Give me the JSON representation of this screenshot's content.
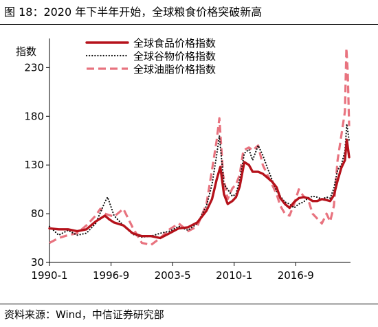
{
  "figure_title": "图 18：2020 年下半年开始，全球粮食价格突破新高",
  "source": "资料来源：Wind，中信证券研究部",
  "chart_data": {
    "type": "line",
    "title": "",
    "ylabel": "指数",
    "xlabel": "",
    "ylim": [
      30,
      250
    ],
    "yticks": [
      30,
      80,
      130,
      180,
      230
    ],
    "xlim": [
      1990.0,
      2022.6
    ],
    "xticks": [
      {
        "label": "1990-1",
        "t": 1990.0
      },
      {
        "label": "1996-9",
        "t": 1996.667
      },
      {
        "label": "2003-5",
        "t": 2003.333
      },
      {
        "label": "2010-1",
        "t": 2010.0
      },
      {
        "label": "2016-9",
        "t": 2016.667
      }
    ],
    "legend_position": "top",
    "grid": false,
    "series": [
      {
        "name": "全球食品价格指数",
        "color": "#b5121b",
        "style": "solid-thick",
        "points": [
          [
            1990.0,
            65
          ],
          [
            1991.0,
            64
          ],
          [
            1992.0,
            64
          ],
          [
            1993.0,
            62
          ],
          [
            1994.0,
            64
          ],
          [
            1995.0,
            72
          ],
          [
            1996.0,
            78
          ],
          [
            1996.5,
            74
          ],
          [
            1997.0,
            71
          ],
          [
            1998.0,
            68
          ],
          [
            1999.0,
            60
          ],
          [
            2000.0,
            57
          ],
          [
            2001.0,
            57
          ],
          [
            2002.0,
            55
          ],
          [
            2003.0,
            60
          ],
          [
            2004.0,
            65
          ],
          [
            2005.0,
            66
          ],
          [
            2006.0,
            71
          ],
          [
            2007.0,
            83
          ],
          [
            2007.6,
            95
          ],
          [
            2008.1,
            115
          ],
          [
            2008.5,
            128
          ],
          [
            2008.9,
            100
          ],
          [
            2009.3,
            90
          ],
          [
            2009.8,
            93
          ],
          [
            2010.2,
            97
          ],
          [
            2010.6,
            108
          ],
          [
            2011.1,
            133
          ],
          [
            2011.6,
            130
          ],
          [
            2012.0,
            123
          ],
          [
            2012.6,
            123
          ],
          [
            2013.1,
            121
          ],
          [
            2013.6,
            117
          ],
          [
            2014.1,
            113
          ],
          [
            2014.6,
            107
          ],
          [
            2015.0,
            96
          ],
          [
            2015.5,
            90
          ],
          [
            2016.0,
            86
          ],
          [
            2016.5,
            92
          ],
          [
            2017.0,
            96
          ],
          [
            2017.5,
            97
          ],
          [
            2018.0,
            96
          ],
          [
            2018.5,
            93
          ],
          [
            2019.0,
            93
          ],
          [
            2019.5,
            95
          ],
          [
            2020.0,
            94
          ],
          [
            2020.4,
            93
          ],
          [
            2020.8,
            99
          ],
          [
            2021.2,
            114
          ],
          [
            2021.6,
            127
          ],
          [
            2022.0,
            135
          ],
          [
            2022.2,
            156
          ],
          [
            2022.45,
            138
          ]
        ]
      },
      {
        "name": "全球谷物价格指数",
        "color": "#111111",
        "style": "dotted",
        "points": [
          [
            1990.0,
            67
          ],
          [
            1991.0,
            58
          ],
          [
            1992.0,
            63
          ],
          [
            1993.0,
            58
          ],
          [
            1994.0,
            60
          ],
          [
            1995.0,
            70
          ],
          [
            1996.0,
            92
          ],
          [
            1996.3,
            97
          ],
          [
            1997.0,
            78
          ],
          [
            1998.0,
            68
          ],
          [
            1999.0,
            59
          ],
          [
            2000.0,
            56
          ],
          [
            2001.0,
            57
          ],
          [
            2002.0,
            60
          ],
          [
            2003.0,
            62
          ],
          [
            2004.0,
            67
          ],
          [
            2005.0,
            63
          ],
          [
            2006.0,
            70
          ],
          [
            2007.0,
            88
          ],
          [
            2007.6,
            110
          ],
          [
            2008.1,
            140
          ],
          [
            2008.4,
            160
          ],
          [
            2008.9,
            110
          ],
          [
            2009.3,
            105
          ],
          [
            2009.8,
            98
          ],
          [
            2010.2,
            100
          ],
          [
            2010.6,
            115
          ],
          [
            2011.1,
            142
          ],
          [
            2011.6,
            146
          ],
          [
            2012.0,
            135
          ],
          [
            2012.6,
            150
          ],
          [
            2013.1,
            140
          ],
          [
            2013.6,
            127
          ],
          [
            2014.1,
            115
          ],
          [
            2014.6,
            103
          ],
          [
            2015.0,
            98
          ],
          [
            2015.5,
            92
          ],
          [
            2016.0,
            90
          ],
          [
            2016.5,
            86
          ],
          [
            2017.0,
            90
          ],
          [
            2017.5,
            92
          ],
          [
            2018.0,
            96
          ],
          [
            2018.5,
            98
          ],
          [
            2019.0,
            97
          ],
          [
            2019.5,
            95
          ],
          [
            2020.0,
            97
          ],
          [
            2020.4,
            96
          ],
          [
            2020.8,
            106
          ],
          [
            2021.2,
            125
          ],
          [
            2021.6,
            130
          ],
          [
            2022.0,
            144
          ],
          [
            2022.2,
            172
          ],
          [
            2022.45,
            155
          ]
        ]
      },
      {
        "name": "全球油脂价格指数",
        "color": "#e8737f",
        "style": "dashed",
        "points": [
          [
            1990.0,
            50
          ],
          [
            1991.0,
            55
          ],
          [
            1992.0,
            58
          ],
          [
            1993.0,
            60
          ],
          [
            1994.0,
            68
          ],
          [
            1995.0,
            78
          ],
          [
            1995.5,
            85
          ],
          [
            1996.0,
            80
          ],
          [
            1997.0,
            77
          ],
          [
            1998.0,
            85
          ],
          [
            1999.0,
            66
          ],
          [
            2000.0,
            50
          ],
          [
            2001.0,
            48
          ],
          [
            2002.0,
            55
          ],
          [
            2003.0,
            64
          ],
          [
            2004.0,
            70
          ],
          [
            2005.0,
            62
          ],
          [
            2006.0,
            67
          ],
          [
            2007.0,
            90
          ],
          [
            2007.6,
            125
          ],
          [
            2008.1,
            155
          ],
          [
            2008.4,
            178
          ],
          [
            2008.8,
            120
          ],
          [
            2009.3,
            95
          ],
          [
            2009.8,
            106
          ],
          [
            2010.2,
            110
          ],
          [
            2010.6,
            120
          ],
          [
            2011.0,
            145
          ],
          [
            2011.6,
            148
          ],
          [
            2012.0,
            145
          ],
          [
            2012.6,
            150
          ],
          [
            2013.1,
            130
          ],
          [
            2013.6,
            120
          ],
          [
            2014.1,
            110
          ],
          [
            2014.6,
            100
          ],
          [
            2015.0,
            88
          ],
          [
            2015.5,
            80
          ],
          [
            2016.0,
            78
          ],
          [
            2016.5,
            90
          ],
          [
            2017.0,
            105
          ],
          [
            2017.5,
            98
          ],
          [
            2018.0,
            95
          ],
          [
            2018.5,
            80
          ],
          [
            2019.0,
            75
          ],
          [
            2019.5,
            70
          ],
          [
            2020.0,
            80
          ],
          [
            2020.4,
            72
          ],
          [
            2020.8,
            88
          ],
          [
            2021.2,
            135
          ],
          [
            2021.6,
            160
          ],
          [
            2022.0,
            185
          ],
          [
            2022.15,
            250
          ],
          [
            2022.3,
            225
          ],
          [
            2022.45,
            170
          ]
        ]
      }
    ]
  }
}
